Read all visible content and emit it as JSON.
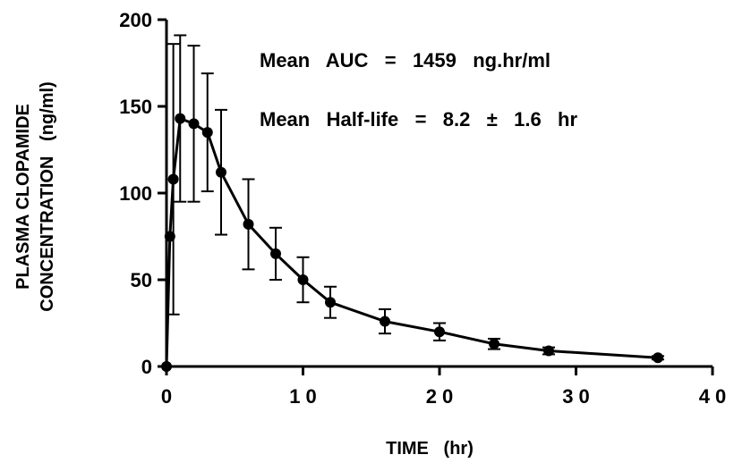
{
  "chart_data": {
    "type": "line",
    "xlabel": "TIME   (hr)",
    "ylabel_line1": "PLASMA CLOPAMIDE",
    "ylabel_line2": "CONCENTRATION   (ng/ml)",
    "xlim": [
      0,
      40
    ],
    "ylim": [
      0,
      200
    ],
    "x_ticks": [
      0,
      10,
      20,
      30,
      40
    ],
    "x_tick_labels": [
      "0",
      "1 0",
      "2 0",
      "3 0",
      "4 0"
    ],
    "y_ticks": [
      0,
      50,
      100,
      150,
      200
    ],
    "y_tick_labels": [
      "0",
      "50",
      "100",
      "150",
      "200"
    ],
    "grid": false,
    "annotations": [
      {
        "text": "Mean   AUC   =   1459   ng.hr/ml"
      },
      {
        "text": "Mean   Half-life   =   8.2   ±   1.6   hr"
      }
    ],
    "series": [
      {
        "points": [
          {
            "x": 0,
            "y": 0,
            "err": 0
          },
          {
            "x": 0.25,
            "y": 75,
            "err": 0
          },
          {
            "x": 0.5,
            "y": 108,
            "err": 78
          },
          {
            "x": 1,
            "y": 143,
            "err": 48
          },
          {
            "x": 2,
            "y": 140,
            "err": 45
          },
          {
            "x": 3,
            "y": 135,
            "err": 34
          },
          {
            "x": 4,
            "y": 112,
            "err": 36
          },
          {
            "x": 6,
            "y": 82,
            "err": 26
          },
          {
            "x": 8,
            "y": 65,
            "err": 15
          },
          {
            "x": 10,
            "y": 50,
            "err": 13
          },
          {
            "x": 12,
            "y": 37,
            "err": 9
          },
          {
            "x": 16,
            "y": 26,
            "err": 7
          },
          {
            "x": 20,
            "y": 20,
            "err": 5
          },
          {
            "x": 24,
            "y": 13,
            "err": 3
          },
          {
            "x": 28,
            "y": 9,
            "err": 2
          },
          {
            "x": 36,
            "y": 5,
            "err": 1
          }
        ]
      }
    ]
  }
}
